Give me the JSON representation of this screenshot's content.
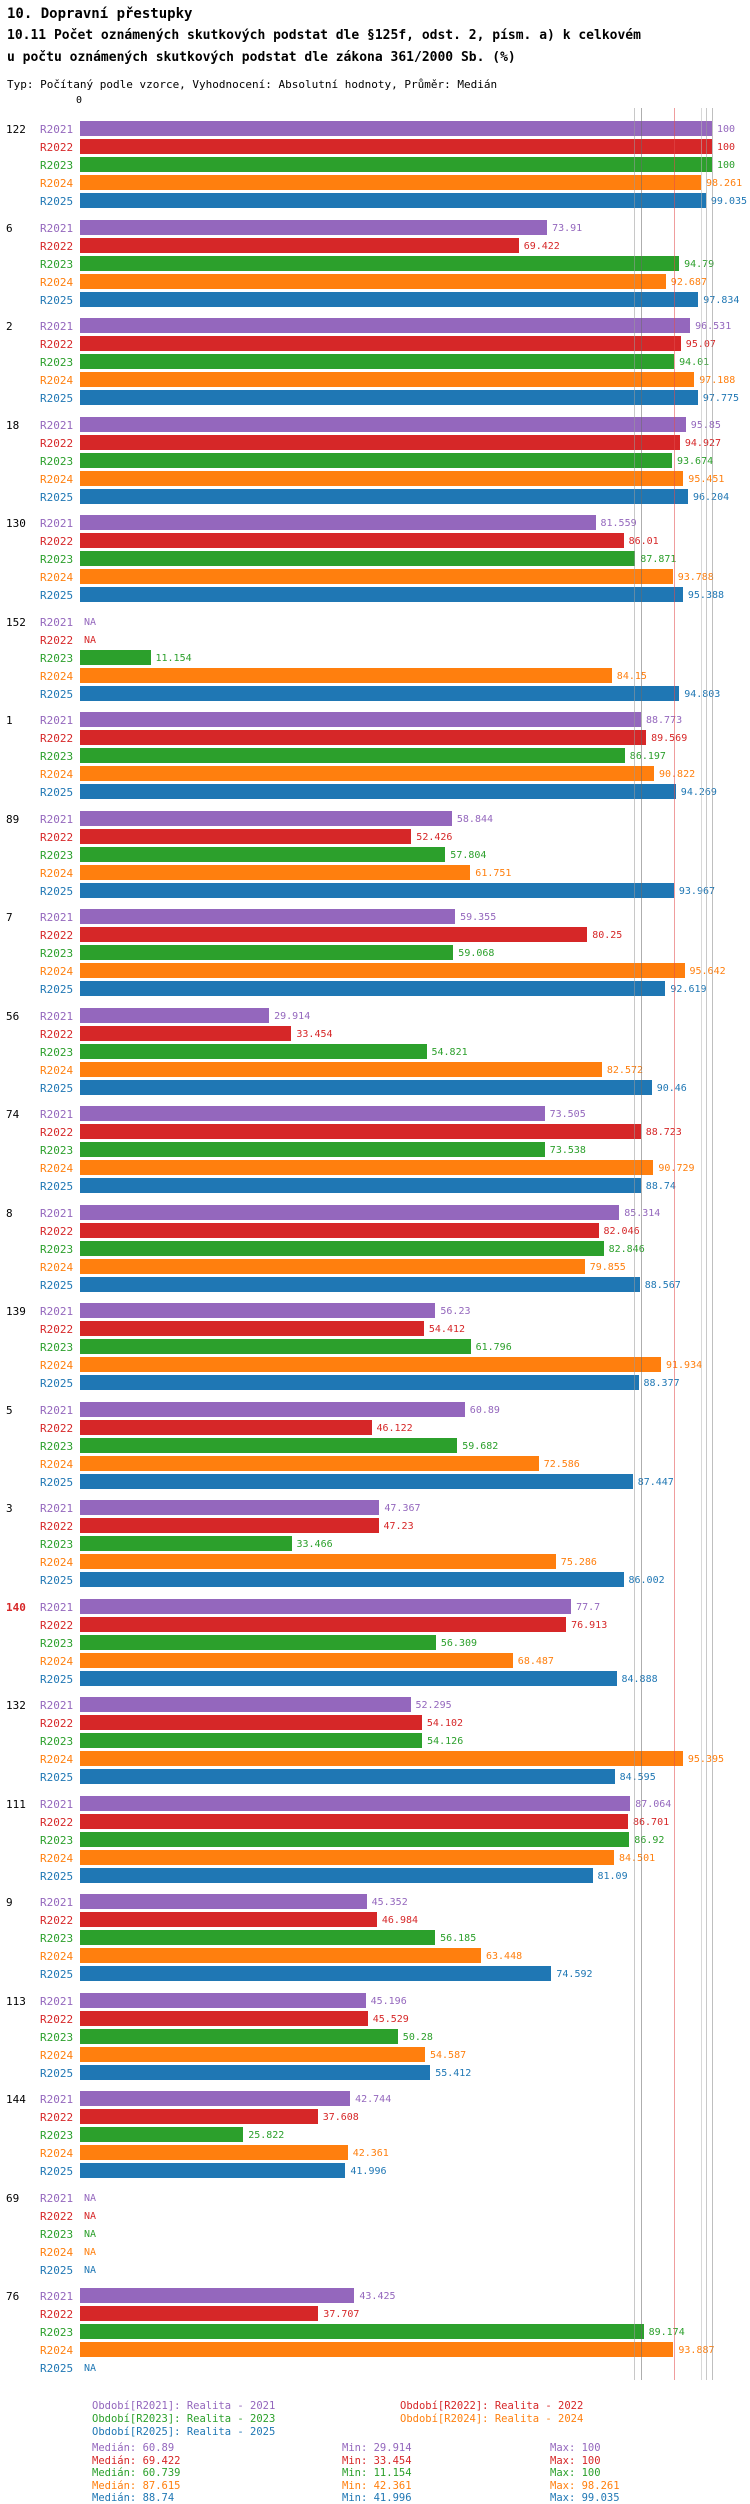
{
  "header": {
    "title": "10. Dopravní přestupky",
    "subtitle_line1": "10.11 Počet oznámených skutkových podstat dle §125f, odst. 2, písm. a) k celkovém",
    "subtitle_line2": "u počtu oznámených skutkových podstat dle zákona 361/2000 Sb. (%)",
    "meta": "Typ: Počítaný podle vzorce, Vyhodnocení: Absolutní hodnoty, Průměr: Medián"
  },
  "axis": {
    "origin_label": "0"
  },
  "chart_data": {
    "type": "bar",
    "orientation": "horizontal",
    "xlim": [
      0,
      100
    ],
    "grid": false,
    "legend_position": "bottom",
    "na_label": "NA",
    "stats_labels": {
      "median": "Medián",
      "min": "Min",
      "max": "Max"
    },
    "series": [
      {
        "key": "R2021",
        "color": "#9467bd",
        "legend": "Období[R2021]: Realita - 2021",
        "median": "60.89",
        "min": "29.914",
        "max": "100"
      },
      {
        "key": "R2022",
        "color": "#d62728",
        "legend": "Období[R2022]: Realita - 2022",
        "median": "69.422",
        "min": "33.454",
        "max": "100"
      },
      {
        "key": "R2023",
        "color": "#2ca02c",
        "legend": "Období[R2023]: Realita - 2023",
        "median": "60.739",
        "min": "11.154",
        "max": "100"
      },
      {
        "key": "R2024",
        "color": "#ff7f0e",
        "legend": "Období[R2024]: Realita - 2024",
        "median": "87.615",
        "min": "42.361",
        "max": "98.261"
      },
      {
        "key": "R2025",
        "color": "#1f77b4",
        "legend": "Období[R2025]: Realita - 2025",
        "median": "88.74",
        "min": "41.996",
        "max": "99.035"
      }
    ],
    "groups": [
      {
        "id": "122",
        "values": [
          100,
          100,
          100,
          98.261,
          99.035
        ]
      },
      {
        "id": "6",
        "values": [
          73.91,
          69.422,
          94.79,
          92.687,
          97.834
        ]
      },
      {
        "id": "2",
        "values": [
          96.531,
          95.07,
          94.01,
          97.188,
          97.775
        ]
      },
      {
        "id": "18",
        "values": [
          95.85,
          94.927,
          93.674,
          95.451,
          96.204
        ]
      },
      {
        "id": "130",
        "values": [
          81.559,
          86.01,
          87.871,
          93.788,
          95.388
        ]
      },
      {
        "id": "152",
        "values": [
          null,
          null,
          11.154,
          84.15,
          94.803
        ]
      },
      {
        "id": "1",
        "values": [
          88.773,
          89.569,
          86.197,
          90.822,
          94.269
        ]
      },
      {
        "id": "89",
        "values": [
          58.844,
          52.426,
          57.804,
          61.751,
          93.967
        ]
      },
      {
        "id": "7",
        "values": [
          59.355,
          80.25,
          59.068,
          95.642,
          92.619
        ]
      },
      {
        "id": "56",
        "values": [
          29.914,
          33.454,
          54.821,
          82.572,
          90.46
        ]
      },
      {
        "id": "74",
        "values": [
          73.505,
          88.723,
          73.538,
          90.729,
          88.74
        ]
      },
      {
        "id": "8",
        "values": [
          85.314,
          82.046,
          82.846,
          79.855,
          88.567
        ]
      },
      {
        "id": "139",
        "values": [
          56.23,
          54.412,
          61.796,
          91.934,
          88.377
        ]
      },
      {
        "id": "5",
        "values": [
          60.89,
          46.122,
          59.682,
          72.586,
          87.447
        ]
      },
      {
        "id": "3",
        "values": [
          47.367,
          47.23,
          33.466,
          75.286,
          86.002
        ]
      },
      {
        "id": "140",
        "highlight": true,
        "values": [
          77.7,
          76.913,
          56.309,
          68.487,
          84.888
        ]
      },
      {
        "id": "132",
        "values": [
          52.295,
          54.102,
          54.126,
          95.395,
          84.595
        ]
      },
      {
        "id": "111",
        "values": [
          87.064,
          86.701,
          86.92,
          84.501,
          81.09
        ]
      },
      {
        "id": "9",
        "values": [
          45.352,
          46.984,
          56.185,
          63.448,
          74.592
        ]
      },
      {
        "id": "113",
        "values": [
          45.196,
          45.529,
          50.28,
          54.587,
          55.412
        ]
      },
      {
        "id": "144",
        "values": [
          42.744,
          37.608,
          25.822,
          42.361,
          41.996
        ]
      },
      {
        "id": "69",
        "values": [
          null,
          null,
          null,
          null,
          null
        ]
      },
      {
        "id": "76",
        "values": [
          43.425,
          37.707,
          89.174,
          93.887,
          null
        ]
      }
    ],
    "reference_lines": [
      {
        "value": 87.6,
        "color": "#9a9a9a"
      },
      {
        "value": 88.7,
        "color": "#6b6b6b"
      },
      {
        "value": 94,
        "color": "#e24c4c"
      },
      {
        "value": 98.26,
        "color": "#b8b8b8"
      },
      {
        "value": 99.03,
        "color": "#9a9a9a"
      },
      {
        "value": 100,
        "color": "#8a8a8a"
      }
    ]
  }
}
